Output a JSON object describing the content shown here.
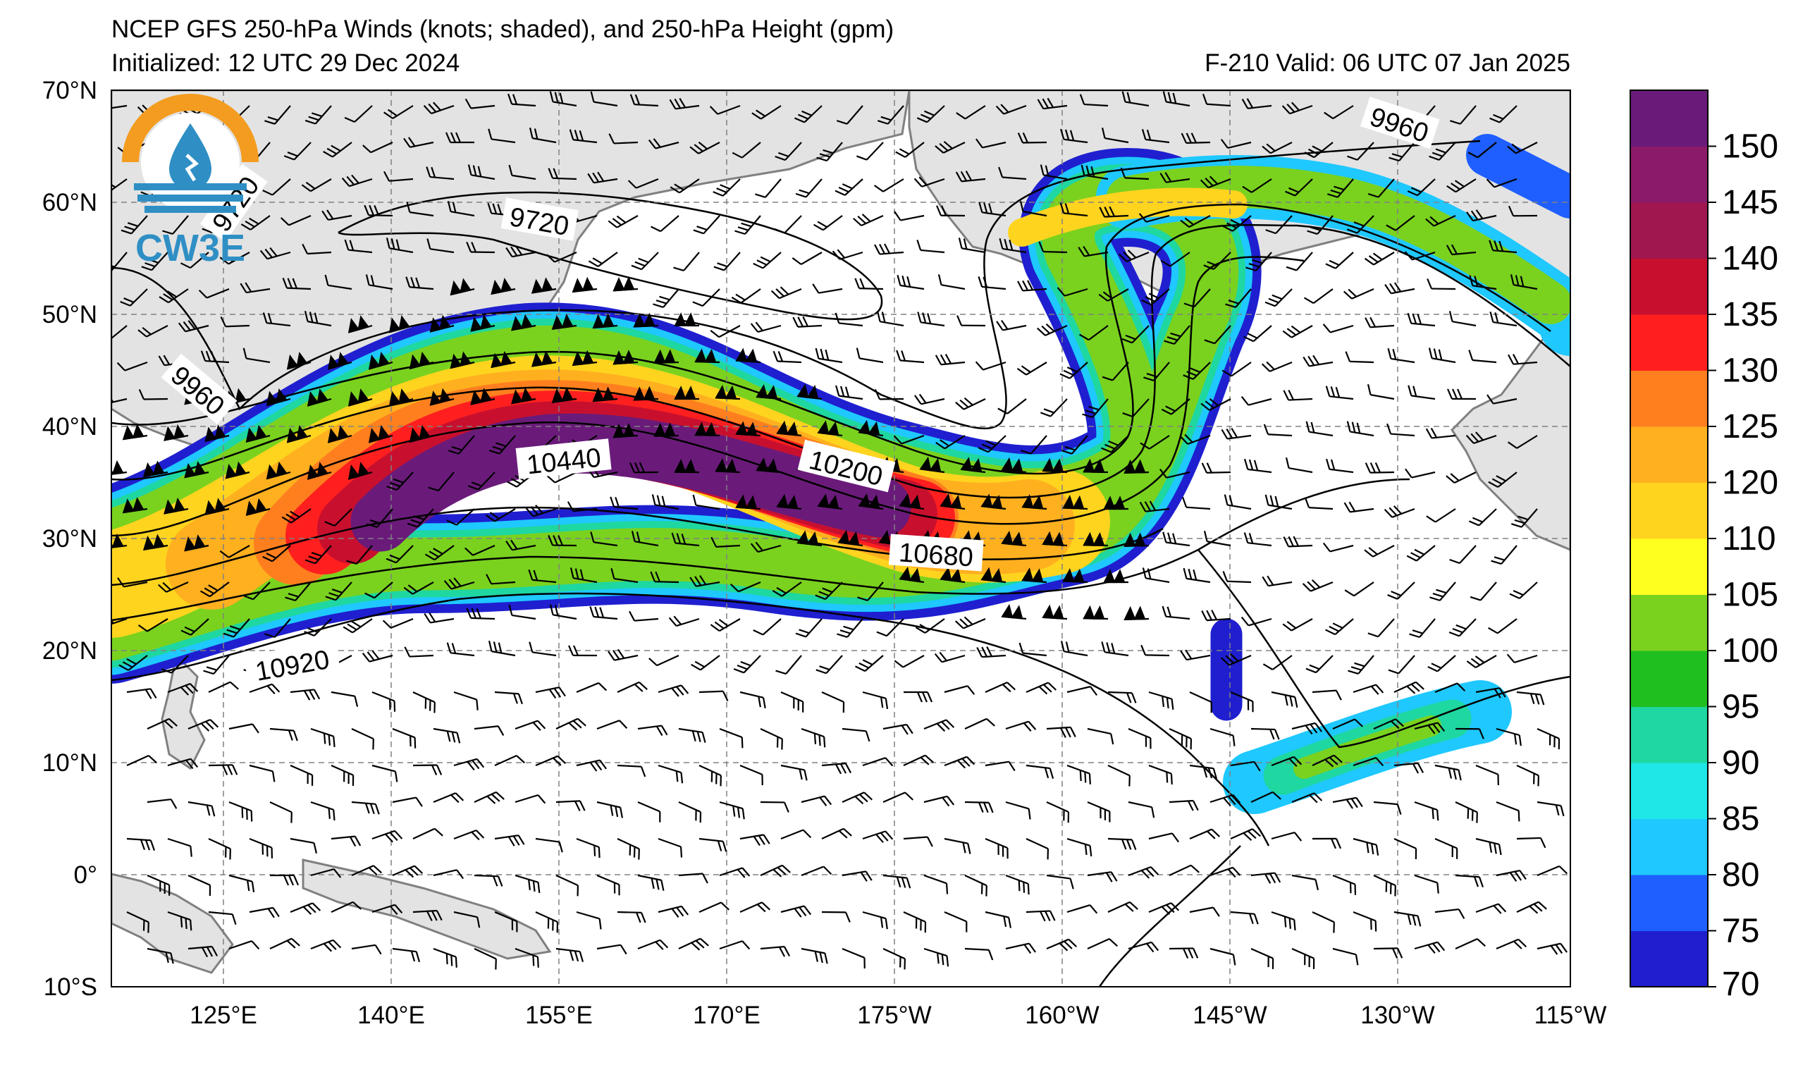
{
  "title": "NCEP GFS 250-hPa Winds (knots; shaded), and 250-hPa Height (gpm)",
  "initialized": "Initialized: 12 UTC 29 Dec 2024",
  "valid": "F-210  Valid: 06 UTC 07 Jan 2025",
  "logo": {
    "text": "CW3E",
    "icon": "cw3e-logo-icon"
  },
  "axes": {
    "lat_labels": [
      "70°N",
      "60°N",
      "50°N",
      "40°N",
      "30°N",
      "20°N",
      "10°N",
      "0°",
      "10°S"
    ],
    "lon_labels": [
      "125°E",
      "140°E",
      "155°E",
      "170°E",
      "175°W",
      "160°W",
      "145°W",
      "130°W",
      "115°W"
    ],
    "lat_range": [
      -10,
      70
    ],
    "lon_range": [
      "115°E",
      "115°W"
    ],
    "grid": "dashed"
  },
  "colorbar": {
    "labels": [
      "150",
      "145",
      "140",
      "135",
      "130",
      "125",
      "120",
      "110",
      "105",
      "100",
      "95",
      "90",
      "85",
      "80",
      "75",
      "70"
    ],
    "colors": [
      "#6a1b7a",
      "#8c1a6a",
      "#a0164e",
      "#c8102e",
      "#ff1f1f",
      "#ff7f1f",
      "#ffb01f",
      "#ffd41f",
      "#ffff1f",
      "#7ad21f",
      "#1fbf1f",
      "#1fd7a0",
      "#1fe7e7",
      "#1fc8ff",
      "#1f5fff",
      "#1f1fd0"
    ]
  },
  "contour_labels": [
    "9960",
    "9720",
    "9720",
    "9960",
    "10440",
    "10200",
    "10680",
    "10920"
  ],
  "colors": {
    "land": "#e3e3e3",
    "coast": "#808080",
    "contour": "#000000",
    "grid": "#808080"
  }
}
